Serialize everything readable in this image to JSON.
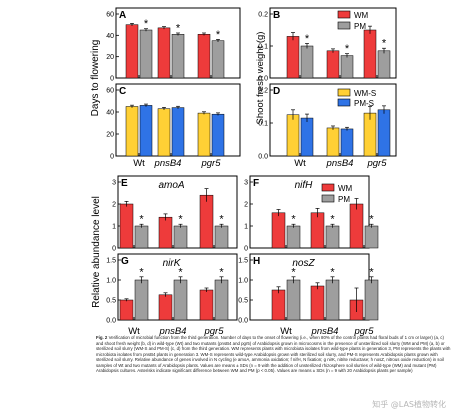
{
  "colors": {
    "red": "#ee3b3b",
    "gray": "#9e9e9e",
    "yellow": "#ffd035",
    "blue": "#2f73e6",
    "axis": "#000000"
  },
  "figure": {
    "ylabel_top": "Days to flowering",
    "ylabel_top_right": "Shoot fresh weight (g)",
    "ylabel_bottom": "Relative abundance level",
    "xcats": [
      "Wt",
      "pnsB4",
      "pgr5"
    ],
    "star": "*",
    "legend_top": [
      "WM",
      "PM"
    ],
    "legend_top_s": [
      "WM-S",
      "PM-S"
    ],
    "legend_bottom": [
      "WM",
      "PM"
    ]
  },
  "chart_data": [
    {
      "panel": "A",
      "type": "bar",
      "title": "",
      "ylim": [
        0,
        60
      ],
      "yticks": [
        0,
        20,
        40,
        60
      ],
      "categories": [
        "Wt",
        "pnsB4",
        "pgr5"
      ],
      "series": [
        {
          "name": "WM",
          "values": [
            50,
            47,
            41
          ],
          "err": [
            1.2,
            1.2,
            1.2
          ]
        },
        {
          "name": "PM",
          "values": [
            45,
            41,
            35
          ],
          "err": [
            1.2,
            1.2,
            1.2
          ]
        }
      ],
      "stars": [
        true,
        true,
        true
      ]
    },
    {
      "panel": "B",
      "type": "bar",
      "title": "",
      "ylim": [
        0,
        0.2
      ],
      "yticks": [
        0.0,
        0.1,
        0.2
      ],
      "decimals": 1,
      "categories": [
        "Wt",
        "pnsB4",
        "pgr5"
      ],
      "series": [
        {
          "name": "WM",
          "values": [
            0.13,
            0.085,
            0.15
          ],
          "err": [
            0.012,
            0.006,
            0.012
          ]
        },
        {
          "name": "PM",
          "values": [
            0.1,
            0.07,
            0.085
          ],
          "err": [
            0.008,
            0.006,
            0.008
          ]
        }
      ],
      "stars": [
        true,
        true,
        true
      ]
    },
    {
      "panel": "C",
      "type": "bar",
      "title": "",
      "ylim": [
        0,
        60
      ],
      "yticks": [
        0,
        20,
        40,
        60
      ],
      "categories": [
        "Wt",
        "pnsB4",
        "pgr5"
      ],
      "series": [
        {
          "name": "WM-S",
          "values": [
            45,
            43,
            39
          ],
          "err": [
            1.2,
            1.2,
            1.2
          ]
        },
        {
          "name": "PM-S",
          "values": [
            46,
            44,
            38
          ],
          "err": [
            1.2,
            1.2,
            1.2
          ]
        }
      ],
      "stars": [
        false,
        false,
        false
      ]
    },
    {
      "panel": "D",
      "type": "bar",
      "title": "",
      "ylim": [
        0,
        0.2
      ],
      "yticks": [
        0.0,
        0.1,
        0.2
      ],
      "decimals": 1,
      "categories": [
        "Wt",
        "pnsB4",
        "pgr5"
      ],
      "series": [
        {
          "name": "WM-S",
          "values": [
            0.125,
            0.085,
            0.13
          ],
          "err": [
            0.015,
            0.006,
            0.02
          ]
        },
        {
          "name": "PM-S",
          "values": [
            0.115,
            0.082,
            0.14
          ],
          "err": [
            0.012,
            0.005,
            0.012
          ]
        }
      ],
      "stars": [
        false,
        false,
        false
      ]
    },
    {
      "panel": "E",
      "type": "bar",
      "title": "amoA",
      "ylim": [
        0,
        3
      ],
      "yticks": [
        0,
        1,
        2,
        3
      ],
      "categories": [
        "Wt",
        "pnsB4",
        "pgr5"
      ],
      "series": [
        {
          "name": "WM",
          "values": [
            2.0,
            1.4,
            2.4
          ],
          "err": [
            0.12,
            0.15,
            0.3
          ]
        },
        {
          "name": "PM",
          "values": [
            1.0,
            1.0,
            1.0
          ],
          "err": [
            0.08,
            0.08,
            0.08
          ]
        }
      ],
      "stars": [
        true,
        true,
        true
      ]
    },
    {
      "panel": "F",
      "type": "bar",
      "title": "nifH",
      "ylim": [
        0,
        3
      ],
      "yticks": [
        0,
        1,
        2,
        3
      ],
      "categories": [
        "Wt",
        "pnsB4",
        "pgr5"
      ],
      "series": [
        {
          "name": "WM",
          "values": [
            1.6,
            1.6,
            2.0
          ],
          "err": [
            0.15,
            0.2,
            0.25
          ]
        },
        {
          "name": "PM",
          "values": [
            1.0,
            1.0,
            1.0
          ],
          "err": [
            0.08,
            0.08,
            0.08
          ]
        }
      ],
      "stars": [
        true,
        true,
        true
      ]
    },
    {
      "panel": "G",
      "type": "bar",
      "title": "nirK",
      "ylim": [
        0,
        1.5
      ],
      "yticks": [
        0.0,
        0.5,
        1.0,
        1.5
      ],
      "decimals": 1,
      "categories": [
        "Wt",
        "pnsB4",
        "pgr5"
      ],
      "series": [
        {
          "name": "WM",
          "values": [
            0.5,
            0.63,
            0.75
          ],
          "err": [
            0.03,
            0.05,
            0.05
          ]
        },
        {
          "name": "PM",
          "values": [
            1.0,
            1.0,
            1.0
          ],
          "err": [
            0.08,
            0.08,
            0.08
          ]
        }
      ],
      "stars": [
        true,
        true,
        true
      ]
    },
    {
      "panel": "H",
      "type": "bar",
      "title": "nosZ",
      "ylim": [
        0,
        1.5
      ],
      "yticks": [
        0.0,
        0.5,
        1.0,
        1.5
      ],
      "decimals": 1,
      "categories": [
        "Wt",
        "pnsB4",
        "pgr5"
      ],
      "series": [
        {
          "name": "WM",
          "values": [
            0.75,
            0.85,
            0.5
          ],
          "err": [
            0.08,
            0.08,
            0.3
          ]
        },
        {
          "name": "PM",
          "values": [
            1.0,
            1.0,
            1.0
          ],
          "err": [
            0.08,
            0.08,
            0.08
          ]
        }
      ],
      "stars": [
        true,
        true,
        true
      ]
    }
  ],
  "caption": {
    "fig_label": "Fig. 2",
    "text": "Verification of microbial function from the third generation. Number of days to the onset of flowering (i.e., when 80% of the control plants had floral buds of 1 cm or larger) (a, c) and shoot fresh weight (b, d) in wild-type (Wt) and two mutants (pnsB4 and pgr5) of Arabidopsis grown in microcosms in the presence of unsterilized soil slurry (WM and PM) (a, b) or sterilized soil slurry (WM-S and PM-S) (c, d) from the third generation. WM represents plants with microbiota isolates from wild-type plants in generation 3, PM represents the plants with microbiota isolates from pnsB4 plants in generation 3. WM-S represents wild-type Arabidopsis grown with sterilized soil slurry, and PM-S represents Arabidopsis plants grown with sterilized soil slurry. Relative abundance of genes involved in N cycling (e amoA, ammonia oxidation; f nifH, N fixation; g nirK, nitrite reductase; h nosZ, nitrous oxide reduction) in soil samples of Wt and two mutants of Arabidopsis plants. Values are means ± SDs (n = 9 with the addition of unsterilized rhizosphere soil slurries of wild-type (WM) and mutant (PM) Arabidopsis cultures. Asterisks indicate significant difference between WM and PM (p < 0.05). Values are means ± SDs (n = 9 with 20 Arabidopsis plants per sample)"
  },
  "watermark": "知乎 @LAS植物转化"
}
